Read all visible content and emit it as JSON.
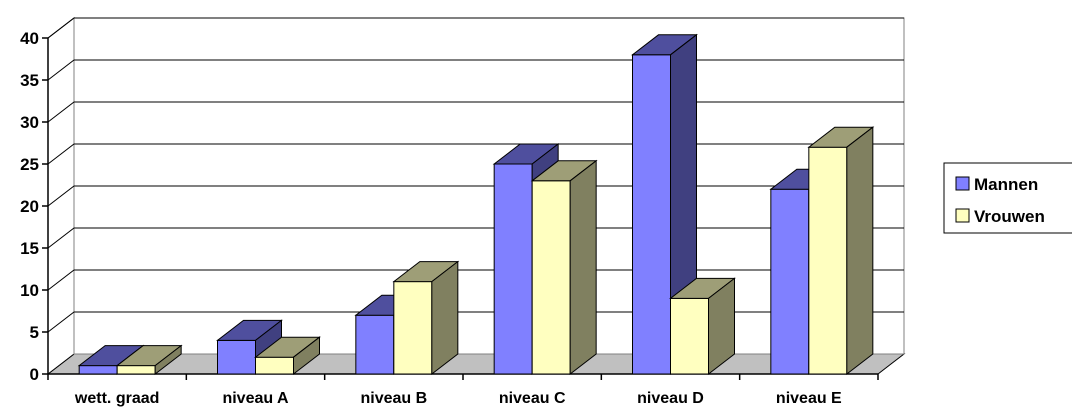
{
  "chart_data": {
    "type": "bar",
    "style": "3d-clustered-column",
    "categories": [
      "wett. graad",
      "niveau A",
      "niveau B",
      "niveau C",
      "niveau D",
      "niveau E"
    ],
    "series": [
      {
        "name": "Mannen",
        "values": [
          1,
          4,
          7,
          25,
          38,
          22
        ],
        "color": "#8080FF"
      },
      {
        "name": "Vrouwen",
        "values": [
          1,
          2,
          11,
          23,
          9,
          27
        ],
        "color": "#FFFFC0"
      }
    ],
    "ylim": [
      0,
      40
    ],
    "yticks": [
      "0",
      "5",
      "10",
      "15",
      "20",
      "25",
      "30",
      "35",
      "40"
    ],
    "grid": true,
    "legend_position": "right",
    "title": "",
    "xlabel": "",
    "ylabel": ""
  }
}
